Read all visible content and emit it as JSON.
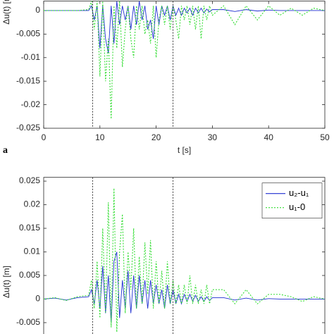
{
  "chart_data": [
    {
      "type": "line",
      "panel_label": "a",
      "xlabel": "t [s]",
      "ylabel": "Δu(t) [m]",
      "x": [
        0,
        2,
        4,
        6,
        8,
        8.5,
        9,
        9.5,
        10,
        10.5,
        11,
        11.5,
        12,
        12.5,
        13,
        13.5,
        14,
        14.5,
        15,
        15.5,
        16,
        16.5,
        17,
        17.5,
        18,
        18.5,
        19,
        19.5,
        20,
        20.5,
        21,
        21.5,
        22,
        22.5,
        23,
        23.5,
        24,
        24.5,
        25,
        25.5,
        26,
        26.5,
        27,
        27.5,
        28,
        28.5,
        29,
        29.5,
        30,
        32,
        34,
        36,
        38,
        40,
        42,
        44,
        46,
        48,
        50
      ],
      "series": [
        {
          "color": "#1f2fd1",
          "style": "solid",
          "values": [
            0,
            0,
            0,
            0,
            0,
            0.001,
            -0.002,
            0.001,
            -0.008,
            0.001,
            -0.006,
            -0.009,
            0.001,
            -0.007,
            0.002,
            -0.003,
            0.001,
            -0.002,
            0.001,
            -0.004,
            0.001,
            -0.003,
            0.002,
            -0.002,
            0.001,
            -0.004,
            -0.002,
            -0.006,
            0.001,
            -0.003,
            0.001,
            -0.001,
            0.001,
            -0.002,
            0.001,
            -0.001,
            0.0005,
            -0.001,
            0.0005,
            -0.0005,
            0.0005,
            -0.001,
            0.0005,
            -0.0005,
            0.0005,
            -0.0005,
            0.0003,
            -0.0003,
            0.0002,
            0.0002,
            -0.0002,
            0.0002,
            -0.0001,
            0.0001,
            0,
            0,
            0,
            0,
            0
          ]
        },
        {
          "color": "#33dd33",
          "style": "dotted",
          "values": [
            0,
            0,
            0,
            0,
            0.0002,
            0.002,
            -0.004,
            0.002,
            -0.014,
            0.002,
            -0.015,
            -0.006,
            -0.023,
            0.001,
            -0.008,
            0.002,
            -0.012,
            -0.004,
            0.001,
            -0.006,
            -0.01,
            0.001,
            -0.004,
            0.001,
            -0.005,
            -0.002,
            -0.007,
            0.001,
            -0.01,
            -0.002,
            0.001,
            -0.003,
            0.001,
            -0.004,
            0.001,
            -0.002,
            -0.006,
            0.001,
            -0.002,
            0.001,
            -0.003,
            0.001,
            -0.004,
            0.001,
            -0.006,
            0.001,
            -0.002,
            0.001,
            -0.001,
            0.001,
            -0.003,
            0.001,
            -0.002,
            0.001,
            -0.001,
            0.0005,
            -0.001,
            0.0005,
            0
          ]
        }
      ],
      "vlines": [
        8.7,
        23
      ],
      "xlim": [
        0,
        50
      ],
      "xticks": [
        0,
        10,
        20,
        30,
        40,
        50
      ],
      "ylim": [
        -0.025,
        0.002
      ],
      "yticks": [
        -0.025,
        -0.02,
        -0.015,
        -0.01,
        -0.005,
        0
      ],
      "grid": false
    },
    {
      "type": "line",
      "ylabel": "Δu(t) [m]",
      "x": [
        0,
        2,
        4,
        6,
        8,
        8.5,
        9,
        9.5,
        10,
        10.5,
        11,
        11.5,
        12,
        12.5,
        13,
        13.5,
        14,
        14.5,
        15,
        15.5,
        16,
        16.5,
        17,
        17.5,
        18,
        18.5,
        19,
        19.5,
        20,
        20.5,
        21,
        21.5,
        22,
        22.5,
        23,
        23.5,
        24,
        24.5,
        25,
        25.5,
        26,
        26.5,
        27,
        27.5,
        28,
        28.5,
        29,
        29.5,
        30,
        32,
        34,
        36,
        38,
        40,
        42,
        44,
        46,
        48,
        50
      ],
      "series": [
        {
          "name": "u₂-u₁",
          "color": "#1f2fd1",
          "style": "solid",
          "values": [
            0,
            0.0002,
            -0.0002,
            0.0003,
            0.0005,
            0.002,
            -0.001,
            0.004,
            -0.002,
            0.007,
            -0.003,
            0.005,
            -0.005,
            0.008,
            0.01,
            -0.004,
            0.004,
            -0.002,
            0.006,
            -0.003,
            0.005,
            -0.002,
            0.005,
            -0.001,
            0.004,
            -0.002,
            0.004,
            -0.001,
            0.003,
            -0.001,
            0.002,
            -0.002,
            0.003,
            -0.001,
            0.002,
            -0.001,
            0.001,
            -0.001,
            0.001,
            -0.0005,
            0.001,
            -0.0005,
            0.0008,
            -0.0005,
            0.0005,
            -0.0005,
            0.0005,
            -0.0003,
            0.0003,
            0.0003,
            -0.0002,
            0.0002,
            -0.0002,
            0.0001,
            0,
            0,
            0,
            0,
            0
          ]
        },
        {
          "name": "u₁-0",
          "color": "#33dd33",
          "style": "dotted",
          "values": [
            0,
            0.0003,
            -0.0003,
            0.0005,
            0.0008,
            0.004,
            -0.002,
            0.008,
            -0.004,
            0.015,
            -0.003,
            0.0205,
            -0.006,
            0.0235,
            -0.007,
            0.01,
            0.018,
            -0.003,
            0.01,
            0.002,
            0.015,
            -0.002,
            0.009,
            -0.001,
            0.012,
            0.001,
            0.0125,
            -0.002,
            0.008,
            -0.001,
            0.006,
            -0.002,
            0.008,
            -0.001,
            0.004,
            -0.001,
            0.003,
            -0.001,
            0.003,
            -0.001,
            0.005,
            -0.001,
            0.003,
            -0.001,
            0.002,
            -0.001,
            0.003,
            -0.001,
            0.002,
            0.002,
            -0.001,
            0.002,
            -0.001,
            0.001,
            0.001,
            0.0005,
            -0.0005,
            0.0005,
            0
          ]
        }
      ],
      "vlines": [
        8.7,
        23
      ],
      "xlim": [
        0,
        50
      ],
      "ylim": [
        -0.008,
        0.0258
      ],
      "yticks": [
        -0.005,
        0,
        0.005,
        0.01,
        0.015,
        0.02,
        0.025
      ],
      "legend": "upper right",
      "grid": false
    }
  ]
}
